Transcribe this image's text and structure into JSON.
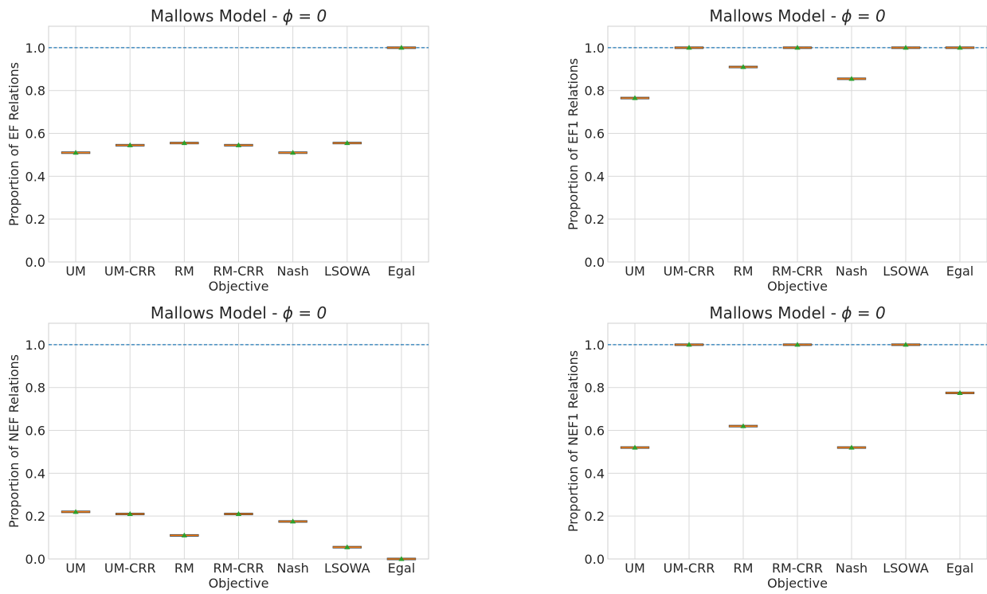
{
  "chart_data": [
    {
      "type": "box",
      "title_prefix": "Mallows Model - ",
      "title_math": "ϕ = 0",
      "xlabel": "Objective",
      "ylabel": "Proportion of EF Relations",
      "categories": [
        "UM",
        "UM-CRR",
        "RM",
        "RM-CRR",
        "Nash",
        "LSOWA",
        "Egal"
      ],
      "values": [
        0.51,
        0.545,
        0.555,
        0.545,
        0.51,
        0.555,
        1.0
      ],
      "ylim": [
        0.0,
        1.1
      ],
      "yticks": [
        "0.0",
        "0.2",
        "0.4",
        "0.6",
        "0.8",
        "1.0"
      ],
      "reference_line": 1.0,
      "grid": true
    },
    {
      "type": "box",
      "title_prefix": "Mallows Model - ",
      "title_math": "ϕ = 0",
      "xlabel": "Objective",
      "ylabel": "Proportion of EF1 Relations",
      "categories": [
        "UM",
        "UM-CRR",
        "RM",
        "RM-CRR",
        "Nash",
        "LSOWA",
        "Egal"
      ],
      "values": [
        0.765,
        1.0,
        0.91,
        1.0,
        0.855,
        1.0,
        1.0
      ],
      "ylim": [
        0.0,
        1.1
      ],
      "yticks": [
        "0.0",
        "0.2",
        "0.4",
        "0.6",
        "0.8",
        "1.0"
      ],
      "reference_line": 1.0,
      "grid": true
    },
    {
      "type": "box",
      "title_prefix": "Mallows Model - ",
      "title_math": "ϕ = 0",
      "xlabel": "Objective",
      "ylabel": "Proportion of NEF Relations",
      "categories": [
        "UM",
        "UM-CRR",
        "RM",
        "RM-CRR",
        "Nash",
        "LSOWA",
        "Egal"
      ],
      "values": [
        0.22,
        0.21,
        0.11,
        0.21,
        0.175,
        0.055,
        0.0
      ],
      "ylim": [
        0.0,
        1.1
      ],
      "yticks": [
        "0.0",
        "0.2",
        "0.4",
        "0.6",
        "0.8",
        "1.0"
      ],
      "reference_line": 1.0,
      "grid": true
    },
    {
      "type": "box",
      "title_prefix": "Mallows Model - ",
      "title_math": "ϕ = 0",
      "xlabel": "Objective",
      "ylabel": "Proportion of NEF1 Relations",
      "categories": [
        "UM",
        "UM-CRR",
        "RM",
        "RM-CRR",
        "Nash",
        "LSOWA",
        "Egal"
      ],
      "values": [
        0.52,
        1.0,
        0.62,
        1.0,
        0.52,
        1.0,
        0.775
      ],
      "ylim": [
        0.0,
        1.1
      ],
      "yticks": [
        "0.0",
        "0.2",
        "0.4",
        "0.6",
        "0.8",
        "1.0"
      ],
      "reference_line": 1.0,
      "grid": true
    }
  ],
  "colors": {
    "grid": "#d9d9d9",
    "axes_edge": "#cfcfcf",
    "reference_line": "#1f77b4",
    "median": "#ff7f0e",
    "box_edge": "#404040",
    "mean_marker": "#2ca02c",
    "text": "#262626"
  }
}
